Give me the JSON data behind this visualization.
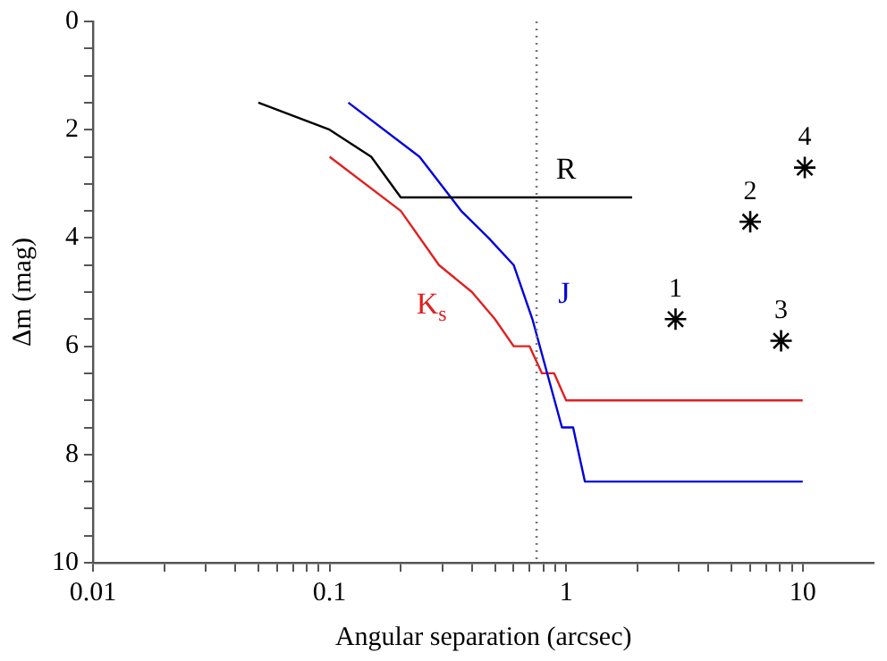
{
  "chart_data": {
    "type": "line",
    "xlabel": "Angular separation (arcsec)",
    "ylabel": "Δm (mag)",
    "log": "x",
    "grid": false,
    "legend": false,
    "xlim": [
      0.01,
      20
    ],
    "xticks": [
      0.01,
      {
        "value": 0.02,
        "label": null
      },
      {
        "value": 0.03,
        "label": null
      },
      {
        "value": 0.04,
        "label": null
      },
      {
        "value": 0.05,
        "label": null
      },
      {
        "value": 0.06,
        "label": null
      },
      {
        "value": 0.07,
        "label": null
      },
      {
        "value": 0.08,
        "label": null
      },
      {
        "value": 0.09,
        "label": null
      },
      0.1,
      {
        "value": 0.2,
        "label": null
      },
      {
        "value": 0.3,
        "label": null
      },
      {
        "value": 0.4,
        "label": null
      },
      {
        "value": 0.5,
        "label": null
      },
      {
        "value": 0.6,
        "label": null
      },
      {
        "value": 0.7,
        "label": null
      },
      {
        "value": 0.8,
        "label": null
      },
      {
        "value": 0.9,
        "label": null
      },
      1,
      {
        "value": 2,
        "label": null
      },
      {
        "value": 3,
        "label": null
      },
      {
        "value": 4,
        "label": null
      },
      {
        "value": 5,
        "label": null
      },
      {
        "value": 6,
        "label": null
      },
      {
        "value": 7,
        "label": null
      },
      {
        "value": 8,
        "label": null
      },
      {
        "value": 9,
        "label": null
      },
      10
    ],
    "ylim": [
      10,
      0
    ],
    "yticks": [
      0,
      {
        "value": 0.5,
        "label": null
      },
      {
        "value": 1,
        "label": null
      },
      {
        "value": 1.5,
        "label": null
      },
      2,
      {
        "value": 2.5,
        "label": null
      },
      {
        "value": 3,
        "label": null
      },
      {
        "value": 3.5,
        "label": null
      },
      4,
      {
        "value": 4.5,
        "label": null
      },
      {
        "value": 5,
        "label": null
      },
      {
        "value": 5.5,
        "label": null
      },
      6,
      {
        "value": 6.5,
        "label": null
      },
      {
        "value": 7,
        "label": null
      },
      {
        "value": 7.5,
        "label": null
      },
      8,
      {
        "value": 8.5,
        "label": null
      },
      {
        "value": 9,
        "label": null
      },
      {
        "value": 9.5,
        "label": null
      },
      10
    ],
    "series": [
      {
        "name": "R",
        "color": "#000000",
        "x": [
          0.05,
          0.1,
          0.15,
          0.2,
          1.9
        ],
        "values": [
          1.5,
          2,
          2.5,
          3.25,
          3.25
        ]
      },
      {
        "name": "J",
        "color": "#0000dd",
        "x": [
          0.12,
          0.24,
          0.36,
          0.47,
          0.6,
          0.72,
          0.96,
          1.07,
          1.2,
          10
        ],
        "values": [
          1.5,
          2.5,
          3.5,
          4,
          4.5,
          5.5,
          7.5,
          7.5,
          8.5,
          8.5
        ]
      },
      {
        "name": "K$_{s}$",
        "color": "#e02020",
        "x": [
          0.1,
          0.2,
          0.29,
          0.4,
          0.5,
          0.6,
          0.7,
          0.79,
          0.89,
          1,
          10
        ],
        "values": [
          2.5,
          3.5,
          4.5,
          5,
          5.5,
          6,
          6,
          6.5,
          6.5,
          7,
          7
        ]
      },
      {
        "type": "scatter",
        "marker": "cross",
        "color": "#000000",
        "x": [
          2.9,
          6,
          8.1,
          10.2
        ],
        "values": [
          5.5,
          3.7,
          5.9,
          2.7
        ]
      }
    ],
    "annotations": [
      {
        "text": "1",
        "x": 2.9,
        "y": 5.5
      },
      {
        "text": "2",
        "x": 6,
        "y": 3.7
      },
      {
        "text": "3",
        "x": 8.1,
        "y": 5.9
      },
      {
        "text": "4",
        "x": 10.2,
        "y": 2.7
      }
    ],
    "ref_lines": [
      {
        "axis": "x",
        "value": 0.75,
        "color": "#777777",
        "line_style": "dotted"
      }
    ]
  }
}
